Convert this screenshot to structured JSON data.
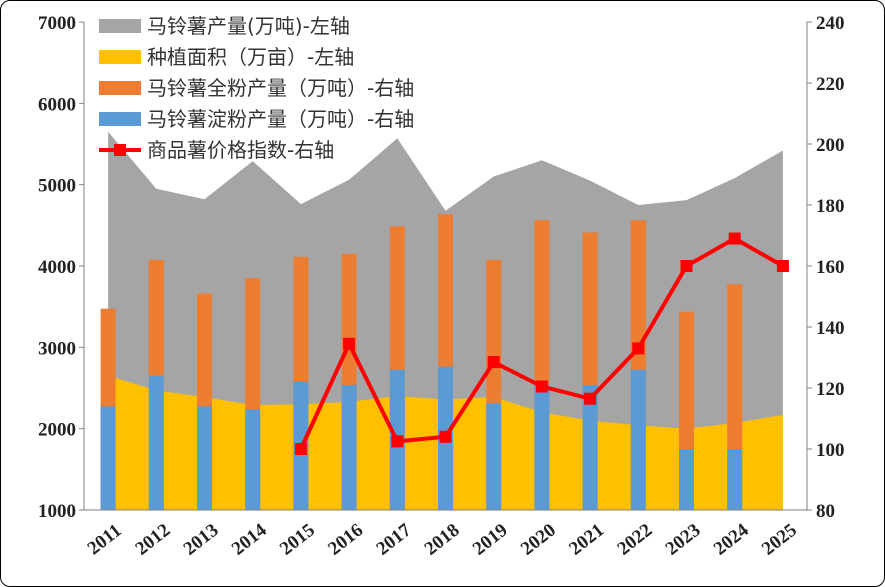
{
  "chart_data": {
    "type": "bar",
    "categories": [
      "2011",
      "2012",
      "2013",
      "2014",
      "2015",
      "2016",
      "2017",
      "2018",
      "2019",
      "2020",
      "2021",
      "2022",
      "2023",
      "2024",
      "2025"
    ],
    "left_axis": {
      "range": [
        1000,
        7000
      ],
      "ticks": [
        1000,
        2000,
        3000,
        4000,
        5000,
        6000,
        7000
      ]
    },
    "right_axis": {
      "range": [
        80,
        240
      ],
      "ticks": [
        80,
        100,
        120,
        140,
        160,
        180,
        200,
        220,
        240
      ]
    },
    "series": [
      {
        "name": "马铃薯产量(万吨)-左轴",
        "type": "area",
        "axis": "left",
        "color": "#a5a5a5",
        "values": [
          5650,
          4950,
          4820,
          5290,
          4760,
          5060,
          5570,
          4680,
          5100,
          5300,
          5050,
          4750,
          4810,
          5080,
          5420
        ]
      },
      {
        "name": "种植面积（万亩）-左轴",
        "type": "area",
        "axis": "left",
        "color": "#ffc000",
        "values": [
          2650,
          2470,
          2390,
          2290,
          2300,
          2330,
          2400,
          2360,
          2390,
          2200,
          2100,
          2040,
          2000,
          2070,
          2170
        ]
      },
      {
        "name": "马铃薯全粉产量（万吨）-右轴",
        "type": "bar",
        "axis": "right",
        "color": "#ed7d31",
        "values": [
          146,
          162,
          151,
          156,
          163,
          164,
          173,
          177,
          162,
          175,
          171,
          175,
          145,
          154,
          null
        ]
      },
      {
        "name": "马铃薯淀粉产量（万吨）-右轴",
        "type": "bar",
        "axis": "right",
        "color": "#5b9bd5",
        "values": [
          114,
          124,
          114,
          113,
          122,
          121,
          126,
          127,
          115,
          121,
          121,
          126,
          100,
          100,
          null
        ]
      },
      {
        "name": "商品薯价格指数-右轴",
        "type": "line",
        "axis": "right",
        "color": "#ff0000",
        "values": [
          null,
          null,
          null,
          null,
          100,
          134.5,
          102.5,
          104,
          128.5,
          120.5,
          116.5,
          133,
          160,
          169,
          160
        ]
      }
    ],
    "legend_position": "top-left",
    "grid": false
  }
}
